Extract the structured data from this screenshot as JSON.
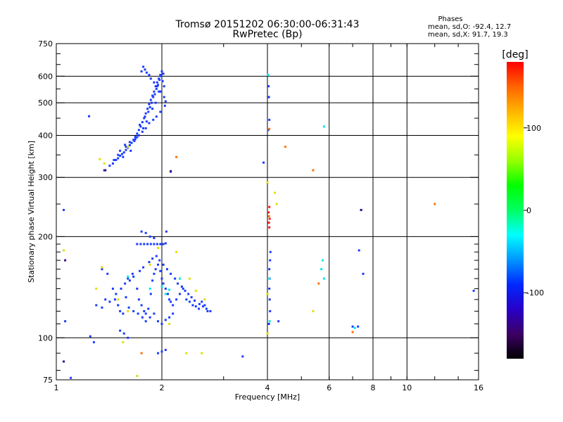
{
  "chart_data": {
    "type": "scatter",
    "title": "Tromsø 20151202 06:30:00-06:31:43",
    "subtitle": "RwPretec (Bp)",
    "xlabel": "Frequency [MHz]",
    "ylabel": "Stationary phase Virtual Height [km]",
    "x_scale": "log",
    "y_scale": "log",
    "xlim": [
      1,
      16
    ],
    "ylim": [
      75,
      750
    ],
    "x_ticks": [
      1,
      2,
      4,
      6,
      8,
      10,
      16
    ],
    "y_ticks": [
      75,
      100,
      200,
      300,
      400,
      500,
      600,
      750
    ],
    "x_gridlines": [
      2,
      4,
      6,
      8,
      10
    ],
    "y_gridlines": [
      100,
      200,
      300,
      400,
      500,
      600
    ],
    "grid": true,
    "phase_stats": {
      "heading": "Phases",
      "o_line": "mean, sd,O: -92.4, 12.7",
      "x_line": "mean, sd,X:  91.7, 19.3"
    },
    "colorbar": {
      "label": "[deg]",
      "min": -180,
      "max": 180,
      "ticks": [
        100,
        0,
        -100
      ],
      "colors": [
        "#000000",
        "#3c0064",
        "#2800c8",
        "#0028ff",
        "#0096ff",
        "#00ffff",
        "#00ff64",
        "#00ff00",
        "#96ff00",
        "#ffff00",
        "#ffb400",
        "#ff6400",
        "#ff0000"
      ]
    },
    "series": [
      {
        "color": "#1a3cff",
        "points": [
          [
            1.37,
            315
          ],
          [
            1.42,
            325
          ],
          [
            1.45,
            330
          ],
          [
            1.48,
            338
          ],
          [
            1.5,
            342
          ],
          [
            1.52,
            348
          ],
          [
            1.54,
            352
          ],
          [
            1.56,
            356
          ],
          [
            1.58,
            362
          ],
          [
            1.6,
            368
          ],
          [
            1.62,
            374
          ],
          [
            1.64,
            380
          ],
          [
            1.66,
            388
          ],
          [
            1.68,
            396
          ],
          [
            1.7,
            405
          ],
          [
            1.72,
            415
          ],
          [
            1.74,
            425
          ],
          [
            1.76,
            438
          ],
          [
            1.78,
            450
          ],
          [
            1.8,
            465
          ],
          [
            1.82,
            480
          ],
          [
            1.84,
            495
          ],
          [
            1.86,
            510
          ],
          [
            1.88,
            525
          ],
          [
            1.9,
            540
          ],
          [
            1.92,
            560
          ],
          [
            1.94,
            575
          ],
          [
            1.96,
            590
          ],
          [
            1.98,
            605
          ],
          [
            2.0,
            620
          ],
          [
            1.46,
            338
          ],
          [
            1.5,
            350
          ],
          [
            1.55,
            345
          ],
          [
            1.58,
            370
          ],
          [
            1.63,
            360
          ],
          [
            1.67,
            385
          ],
          [
            1.7,
            395
          ],
          [
            1.73,
            430
          ],
          [
            1.77,
            420
          ],
          [
            1.79,
            455
          ],
          [
            1.81,
            440
          ],
          [
            1.83,
            470
          ],
          [
            1.85,
            485
          ],
          [
            1.87,
            500
          ],
          [
            1.89,
            520
          ],
          [
            1.91,
            530
          ],
          [
            1.93,
            550
          ],
          [
            1.95,
            565
          ],
          [
            1.97,
            585
          ],
          [
            1.99,
            600
          ],
          [
            2.01,
            580
          ],
          [
            2.03,
            560
          ],
          [
            2.02,
            610
          ],
          [
            1.96,
            540
          ],
          [
            1.92,
            500
          ],
          [
            1.88,
            480
          ],
          [
            1.75,
            620
          ],
          [
            1.77,
            640
          ],
          [
            1.79,
            628
          ],
          [
            1.81,
            615
          ],
          [
            1.84,
            605
          ],
          [
            1.86,
            590
          ],
          [
            1.9,
            575
          ],
          [
            1.94,
            560
          ],
          [
            1.98,
            540
          ],
          [
            2.03,
            520
          ],
          [
            2.05,
            505
          ],
          [
            2.04,
            490
          ],
          [
            1.98,
            470
          ],
          [
            1.93,
            455
          ],
          [
            1.89,
            445
          ],
          [
            1.84,
            435
          ],
          [
            1.8,
            420
          ],
          [
            1.76,
            410
          ],
          [
            1.72,
            400
          ],
          [
            1.68,
            390
          ],
          [
            1.62,
            382
          ],
          [
            1.57,
            375
          ],
          [
            1.52,
            360
          ],
          [
            1.24,
            456
          ],
          [
            2.12,
            312
          ],
          [
            3.9,
            332
          ],
          [
            4.05,
            445
          ],
          [
            4.02,
            415
          ],
          [
            4.04,
            520
          ],
          [
            4.03,
            560
          ],
          [
            1.05,
            240
          ],
          [
            1.75,
            207
          ],
          [
            1.8,
            205
          ],
          [
            1.85,
            200
          ],
          [
            1.9,
            198
          ],
          [
            1.7,
            190
          ],
          [
            1.74,
            190
          ],
          [
            1.78,
            190
          ],
          [
            1.82,
            190
          ],
          [
            1.86,
            190
          ],
          [
            1.9,
            190
          ],
          [
            1.94,
            190
          ],
          [
            1.98,
            190
          ],
          [
            2.02,
            190
          ],
          [
            2.05,
            191
          ],
          [
            2.06,
            207
          ],
          [
            1.35,
            160
          ],
          [
            1.4,
            155
          ],
          [
            1.45,
            140
          ],
          [
            1.47,
            130
          ],
          [
            1.5,
            125
          ],
          [
            1.52,
            120
          ],
          [
            1.55,
            118
          ],
          [
            1.58,
            132
          ],
          [
            1.6,
            150
          ],
          [
            1.65,
            155
          ],
          [
            1.7,
            140
          ],
          [
            1.72,
            130
          ],
          [
            1.75,
            125
          ],
          [
            1.78,
            120
          ],
          [
            1.8,
            118
          ],
          [
            1.83,
            122
          ],
          [
            1.86,
            135
          ],
          [
            1.88,
            148
          ],
          [
            1.9,
            155
          ],
          [
            1.92,
            160
          ],
          [
            1.95,
            165
          ],
          [
            1.98,
            158
          ],
          [
            2.0,
            150
          ],
          [
            2.02,
            145
          ],
          [
            2.05,
            140
          ],
          [
            2.08,
            135
          ],
          [
            2.1,
            130
          ],
          [
            2.12,
            128
          ],
          [
            2.15,
            125
          ],
          [
            2.2,
            130
          ],
          [
            2.25,
            135
          ],
          [
            2.3,
            140
          ],
          [
            2.35,
            130
          ],
          [
            2.4,
            128
          ],
          [
            2.45,
            125
          ],
          [
            2.5,
            124
          ],
          [
            2.55,
            122
          ],
          [
            2.6,
            128
          ],
          [
            2.65,
            125
          ],
          [
            2.7,
            120
          ],
          [
            1.3,
            125
          ],
          [
            1.35,
            123
          ],
          [
            1.38,
            130
          ],
          [
            1.42,
            128
          ],
          [
            1.48,
            135
          ],
          [
            1.53,
            140
          ],
          [
            1.57,
            145
          ],
          [
            1.62,
            148
          ],
          [
            1.66,
            152
          ],
          [
            1.73,
            158
          ],
          [
            1.77,
            162
          ],
          [
            1.84,
            168
          ],
          [
            1.88,
            172
          ],
          [
            1.93,
            175
          ],
          [
            1.97,
            170
          ],
          [
            2.02,
            165
          ],
          [
            2.07,
            160
          ],
          [
            2.12,
            155
          ],
          [
            2.18,
            150
          ],
          [
            2.22,
            145
          ],
          [
            2.28,
            142
          ],
          [
            2.33,
            138
          ],
          [
            2.38,
            135
          ],
          [
            2.43,
            132
          ],
          [
            2.48,
            129
          ],
          [
            2.56,
            126
          ],
          [
            2.62,
            124
          ],
          [
            2.68,
            122
          ],
          [
            2.75,
            120
          ],
          [
            1.85,
            115
          ],
          [
            1.9,
            118
          ],
          [
            1.95,
            112
          ],
          [
            2.0,
            110
          ],
          [
            2.05,
            113
          ],
          [
            2.1,
            115
          ],
          [
            2.15,
            118
          ],
          [
            1.8,
            112
          ],
          [
            1.76,
            115
          ],
          [
            1.71,
            118
          ],
          [
            1.66,
            120
          ],
          [
            1.61,
            123
          ],
          [
            1.52,
            105
          ],
          [
            1.56,
            103
          ],
          [
            1.6,
            100
          ],
          [
            1.25,
            101
          ],
          [
            1.28,
            97
          ],
          [
            1.95,
            90
          ],
          [
            2.0,
            91
          ],
          [
            2.05,
            92
          ],
          [
            3.4,
            88
          ],
          [
            1.06,
            112
          ],
          [
            1.1,
            76
          ],
          [
            4.05,
            140
          ],
          [
            4.06,
            150
          ],
          [
            4.05,
            160
          ],
          [
            4.07,
            170
          ],
          [
            4.08,
            180
          ],
          [
            4.06,
            130
          ],
          [
            4.07,
            120
          ],
          [
            4.04,
            110
          ],
          [
            7.3,
            182
          ],
          [
            7.5,
            155
          ],
          [
            7.0,
            108
          ],
          [
            7.25,
            108
          ],
          [
            7.4,
            240
          ],
          [
            15.5,
            138
          ],
          [
            4.3,
            112
          ]
        ]
      },
      {
        "color": "#00e8e8",
        "points": [
          [
            4.02,
            605
          ],
          [
            5.8,
            425
          ],
          [
            5.75,
            170
          ],
          [
            5.7,
            160
          ],
          [
            5.8,
            150
          ],
          [
            1.85,
            140
          ],
          [
            2.0,
            142
          ],
          [
            2.1,
            139
          ],
          [
            1.6,
            152
          ],
          [
            2.25,
            150
          ],
          [
            2.05,
            135
          ],
          [
            4.05,
            150
          ],
          [
            4.06,
            112
          ],
          [
            7.1,
            107
          ]
        ]
      },
      {
        "color": "#e0e000",
        "points": [
          [
            1.33,
            340
          ],
          [
            1.37,
            330
          ],
          [
            1.6,
            370
          ],
          [
            1.05,
            182
          ],
          [
            1.5,
            130
          ],
          [
            1.6,
            120
          ],
          [
            1.3,
            140
          ],
          [
            1.85,
            165
          ],
          [
            1.95,
            185
          ],
          [
            2.2,
            180
          ],
          [
            2.4,
            150
          ],
          [
            2.5,
            138
          ],
          [
            2.65,
            130
          ],
          [
            2.35,
            90
          ],
          [
            2.6,
            90
          ],
          [
            1.7,
            77
          ],
          [
            1.55,
            97
          ],
          [
            4.0,
            290
          ],
          [
            4.2,
            270
          ],
          [
            4.25,
            250
          ],
          [
            4.0,
            135
          ],
          [
            4.0,
            103
          ],
          [
            5.4,
            120
          ],
          [
            2.1,
            110
          ],
          [
            1.35,
            162
          ]
        ]
      },
      {
        "color": "#ff7000",
        "points": [
          [
            2.2,
            345
          ],
          [
            4.5,
            370
          ],
          [
            5.4,
            315
          ],
          [
            12.0,
            250
          ],
          [
            1.75,
            90
          ],
          [
            4.05,
            418
          ],
          [
            4.04,
            230
          ],
          [
            5.6,
            145
          ],
          [
            7.0,
            104
          ]
        ]
      },
      {
        "color": "#ff1a1a",
        "points": [
          [
            4.05,
            245
          ],
          [
            4.03,
            236
          ],
          [
            4.06,
            226
          ],
          [
            4.04,
            220
          ],
          [
            4.05,
            213
          ]
        ]
      },
      {
        "color": "#3a0a8a",
        "points": [
          [
            1.06,
            170
          ],
          [
            1.38,
            315
          ],
          [
            2.12,
            313
          ],
          [
            7.4,
            240
          ],
          [
            1.05,
            85
          ]
        ]
      }
    ]
  }
}
